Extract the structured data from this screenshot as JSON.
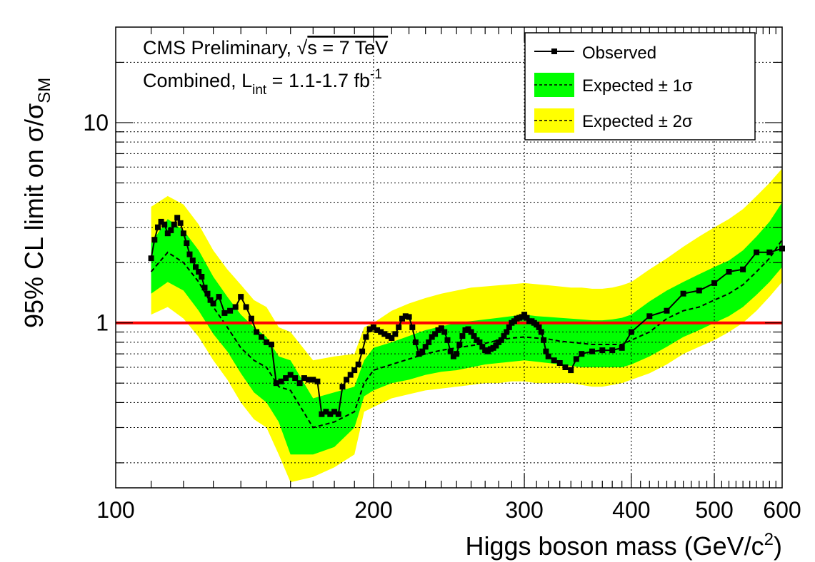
{
  "chart_data": {
    "type": "line",
    "title": "",
    "annotations": {
      "line1": "CMS Preliminary, ",
      "sqrt_symbol": "√",
      "line1_rest": "s = 7 TeV",
      "line2_pre": "Combined, L",
      "line2_sub": "int",
      "line2_mid": " = 1.1-1.7 fb",
      "line2_sup": "-1"
    },
    "xlabel_main": "Higgs boson mass (GeV/c",
    "xlabel_sup": "2",
    "xlabel_close": ")",
    "ylabel_main": "95% CL limit on σ/σ",
    "ylabel_sub": "SM",
    "x_scale": "log",
    "y_scale": "log",
    "xlim": [
      100,
      600
    ],
    "ylim": [
      0.15,
      30
    ],
    "x_ticks": [
      {
        "value": 100,
        "label": "100"
      },
      {
        "value": 200,
        "label": "200"
      },
      {
        "value": 300,
        "label": "300"
      },
      {
        "value": 400,
        "label": "400"
      },
      {
        "value": 500,
        "label": "500"
      },
      {
        "value": 600,
        "label": "600"
      }
    ],
    "y_ticks": [
      {
        "value": 1,
        "label": "1"
      },
      {
        "value": 10,
        "label": "10"
      }
    ],
    "grid": true,
    "legend_position": "top-right",
    "legend": [
      {
        "label": "Observed",
        "style": "line-marker"
      },
      {
        "label": "Expected ± 1σ",
        "style": "green-band-dashed"
      },
      {
        "label": "Expected ± 2σ",
        "style": "yellow-band-dashed"
      }
    ],
    "reference_line": {
      "y": 1,
      "color": "#ff0000"
    },
    "colors": {
      "observed": "#000000",
      "band1": "#00ff00",
      "band2": "#ffff00",
      "reference": "#ff0000"
    },
    "observed": {
      "x": [
        110,
        111,
        112,
        113,
        114,
        115,
        116,
        117,
        118,
        119,
        120,
        121,
        122,
        123,
        124,
        125,
        126,
        127,
        128,
        129,
        130,
        132,
        134,
        136,
        138,
        140,
        142,
        144,
        146,
        148,
        150,
        152,
        154,
        156,
        158,
        160,
        162,
        164,
        166,
        168,
        170,
        172,
        174,
        176,
        178,
        180,
        182,
        184,
        186,
        188,
        190,
        192,
        194,
        196,
        198,
        200,
        202,
        204,
        206,
        208,
        210,
        212,
        214,
        216,
        218,
        220,
        222,
        224,
        226,
        228,
        230,
        232,
        234,
        236,
        238,
        240,
        242,
        244,
        246,
        248,
        250,
        252,
        254,
        256,
        258,
        260,
        262,
        264,
        266,
        268,
        270,
        272,
        274,
        276,
        278,
        280,
        282,
        284,
        286,
        288,
        290,
        292,
        294,
        296,
        298,
        300,
        302,
        304,
        306,
        308,
        310,
        312,
        314,
        316,
        318,
        320,
        325,
        330,
        335,
        340,
        345,
        350,
        360,
        370,
        380,
        390,
        400,
        420,
        440,
        460,
        480,
        500,
        520,
        540,
        560,
        580,
        600
      ],
      "y": [
        2.1,
        2.6,
        3.0,
        3.2,
        3.1,
        2.8,
        2.9,
        3.1,
        3.35,
        3.15,
        2.8,
        2.5,
        2.2,
        2.05,
        1.9,
        1.8,
        1.7,
        1.5,
        1.4,
        1.3,
        1.25,
        1.35,
        1.12,
        1.15,
        1.2,
        1.35,
        1.2,
        1.05,
        0.9,
        0.85,
        0.8,
        0.78,
        0.5,
        0.51,
        0.53,
        0.55,
        0.53,
        0.5,
        0.53,
        0.52,
        0.52,
        0.51,
        0.35,
        0.36,
        0.35,
        0.36,
        0.35,
        0.48,
        0.52,
        0.55,
        0.58,
        0.62,
        0.72,
        0.85,
        0.93,
        0.95,
        0.92,
        0.9,
        0.88,
        0.86,
        0.84,
        0.88,
        0.95,
        1.05,
        1.08,
        1.07,
        0.95,
        0.8,
        0.7,
        0.72,
        0.76,
        0.8,
        0.85,
        0.88,
        0.92,
        0.94,
        0.9,
        0.82,
        0.72,
        0.68,
        0.7,
        0.78,
        0.86,
        0.92,
        0.93,
        0.9,
        0.86,
        0.82,
        0.8,
        0.76,
        0.73,
        0.72,
        0.74,
        0.75,
        0.77,
        0.8,
        0.82,
        0.86,
        0.9,
        0.95,
        1.0,
        1.02,
        1.05,
        1.06,
        1.07,
        1.1,
        1.06,
        1.02,
        1.02,
        1.0,
        0.98,
        0.95,
        0.9,
        0.82,
        0.72,
        0.68,
        0.65,
        0.63,
        0.6,
        0.58,
        0.66,
        0.7,
        0.72,
        0.73,
        0.73,
        0.75,
        0.9,
        1.08,
        1.15,
        1.4,
        1.45,
        1.58,
        1.8,
        1.85,
        2.25,
        2.25,
        2.35
      ]
    },
    "expected": {
      "x": [
        110,
        115,
        120,
        125,
        130,
        135,
        140,
        145,
        150,
        155,
        160,
        170,
        180,
        190,
        195,
        200,
        210,
        220,
        230,
        240,
        250,
        260,
        270,
        280,
        290,
        300,
        310,
        320,
        330,
        340,
        350,
        360,
        370,
        380,
        390,
        400,
        420,
        440,
        460,
        480,
        500,
        520,
        540,
        560,
        580,
        600
      ],
      "median": [
        1.8,
        2.25,
        2.0,
        1.6,
        1.2,
        0.95,
        0.75,
        0.65,
        0.6,
        0.48,
        0.46,
        0.3,
        0.32,
        0.36,
        0.5,
        0.58,
        0.62,
        0.66,
        0.7,
        0.73,
        0.75,
        0.77,
        0.79,
        0.82,
        0.84,
        0.85,
        0.84,
        0.83,
        0.81,
        0.8,
        0.79,
        0.78,
        0.78,
        0.78,
        0.78,
        0.82,
        0.9,
        1.05,
        1.15,
        1.2,
        1.3,
        1.4,
        1.55,
        1.8,
        2.1,
        2.6
      ],
      "band1_low": [
        1.4,
        1.6,
        1.45,
        1.15,
        0.88,
        0.72,
        0.56,
        0.45,
        0.4,
        0.32,
        0.22,
        0.22,
        0.24,
        0.3,
        0.43,
        0.46,
        0.5,
        0.52,
        0.55,
        0.57,
        0.58,
        0.6,
        0.62,
        0.63,
        0.64,
        0.65,
        0.64,
        0.63,
        0.62,
        0.61,
        0.6,
        0.6,
        0.6,
        0.6,
        0.6,
        0.62,
        0.68,
        0.76,
        0.85,
        0.92,
        1.0,
        1.08,
        1.2,
        1.38,
        1.6,
        1.9
      ],
      "band1_high": [
        2.5,
        3.3,
        2.9,
        2.3,
        1.7,
        1.35,
        1.1,
        0.95,
        0.85,
        0.68,
        0.65,
        0.42,
        0.45,
        0.48,
        0.65,
        0.75,
        0.8,
        0.86,
        0.92,
        0.96,
        1.0,
        1.02,
        1.04,
        1.06,
        1.08,
        1.1,
        1.08,
        1.07,
        1.06,
        1.05,
        1.04,
        1.03,
        1.03,
        1.04,
        1.06,
        1.1,
        1.28,
        1.45,
        1.6,
        1.75,
        1.9,
        2.05,
        2.3,
        2.7,
        3.2,
        4.0
      ],
      "band2_low": [
        1.1,
        1.2,
        1.05,
        0.85,
        0.65,
        0.52,
        0.4,
        0.33,
        0.3,
        0.22,
        0.16,
        0.17,
        0.19,
        0.22,
        0.36,
        0.38,
        0.42,
        0.44,
        0.46,
        0.47,
        0.48,
        0.49,
        0.5,
        0.5,
        0.51,
        0.51,
        0.5,
        0.5,
        0.5,
        0.5,
        0.49,
        0.48,
        0.48,
        0.49,
        0.5,
        0.52,
        0.56,
        0.62,
        0.7,
        0.76,
        0.82,
        0.9,
        1.0,
        1.15,
        1.35,
        1.6
      ],
      "band2_high": [
        3.8,
        4.3,
        3.9,
        3.1,
        2.3,
        1.85,
        1.55,
        1.3,
        1.2,
        0.95,
        0.9,
        0.65,
        0.68,
        0.7,
        0.95,
        1.0,
        1.15,
        1.25,
        1.33,
        1.4,
        1.45,
        1.5,
        1.52,
        1.54,
        1.56,
        1.58,
        1.56,
        1.54,
        1.52,
        1.5,
        1.5,
        1.48,
        1.48,
        1.5,
        1.54,
        1.6,
        1.85,
        2.1,
        2.4,
        2.7,
        3.0,
        3.3,
        3.7,
        4.3,
        5.0,
        5.9
      ]
    }
  }
}
